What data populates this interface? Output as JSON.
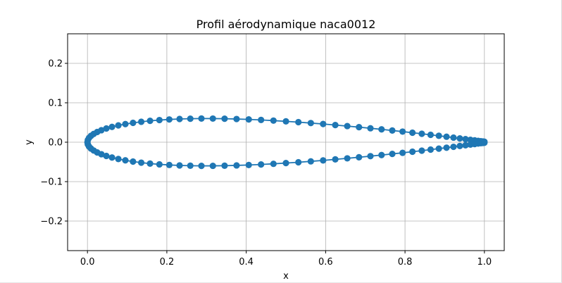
{
  "chart_data": {
    "type": "scatter",
    "title": "Profil aérodynamique naca0012",
    "xlabel": "x",
    "ylabel": "y",
    "xlim": [
      -0.05,
      1.05
    ],
    "ylim": [
      -0.275,
      0.275
    ],
    "xticks": [
      0.0,
      0.2,
      0.4,
      0.6,
      0.8,
      1.0
    ],
    "xtick_labels": [
      "0.0",
      "0.2",
      "0.4",
      "0.6",
      "0.8",
      "1.0"
    ],
    "yticks": [
      -0.2,
      -0.1,
      0.0,
      0.1,
      0.2
    ],
    "ytick_labels": [
      "−0.2",
      "−0.1",
      "0.0",
      "0.1",
      "0.2"
    ],
    "grid": true,
    "marker": "o",
    "series": [
      {
        "color": "#1f77b4",
        "thickness_ratio": 0.12,
        "equation": "NACA 4-digit symmetric",
        "n_points_per_surface": 50,
        "x_distribution": "cosine",
        "x": [],
        "y": []
      }
    ]
  }
}
